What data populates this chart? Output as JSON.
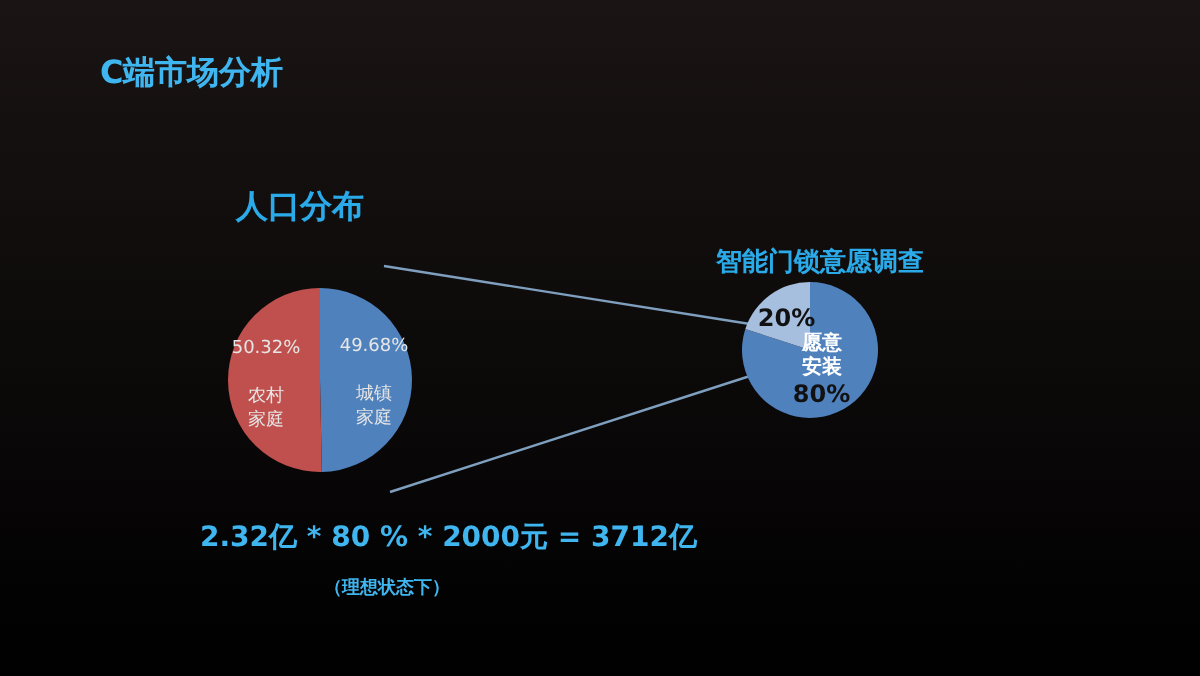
{
  "chart_data": [
    {
      "type": "pie",
      "title": "人口分布",
      "categories": [
        "城镇家庭",
        "农村家庭"
      ],
      "values": [
        49.68,
        50.32
      ],
      "colors": [
        "#4f81bd",
        "#c0504d"
      ],
      "value_labels": [
        "49.68%",
        "50.32%"
      ],
      "legend": false,
      "annotations": [
        "C端市场分析",
        "2.32亿 * 80 % * 2000元 = 3712亿",
        "（理想状态下）"
      ]
    },
    {
      "type": "pie",
      "title": "智能门锁意愿调查",
      "categories": [
        "愿意安装",
        null
      ],
      "values": [
        80,
        20
      ],
      "colors": [
        "#4f81bd",
        "#a7bfde"
      ],
      "value_labels": [
        "80%",
        "20%"
      ],
      "legend": false
    }
  ]
}
